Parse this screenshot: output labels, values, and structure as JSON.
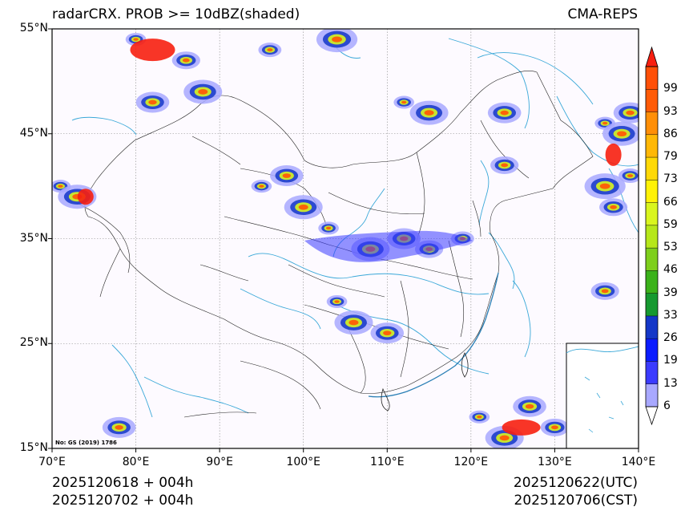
{
  "header": {
    "title_left": "radarCRX. PROB >= 10dBZ(shaded)",
    "title_right": "CMA-REPS"
  },
  "map": {
    "extent": {
      "lon": [
        70,
        140
      ],
      "lat": [
        15,
        55
      ]
    },
    "lat_labels": [
      "55°N",
      "45°N",
      "35°N",
      "25°N",
      "15°N"
    ],
    "lon_labels": [
      "70°E",
      "80°E",
      "90°E",
      "100°E",
      "110°E",
      "120°E",
      "130°E",
      "140°E"
    ],
    "note": "No: GS (2019) 1786",
    "colors": {
      "ocean_tint": "#fdfaff",
      "border": "#222222",
      "river": "#3aa8d8",
      "grid": "#888888"
    }
  },
  "footer": {
    "init_utc": "2025120618  +  004h",
    "init_cst": "2025120702  +  004h",
    "valid_utc": "2025120622(UTC)",
    "valid_cst": "2025120706(CST)"
  },
  "colorbar": {
    "labels": [
      "99",
      "93",
      "86",
      "79",
      "73",
      "66",
      "59",
      "53",
      "46",
      "39",
      "33",
      "26",
      "19",
      "13",
      "6"
    ],
    "colors": [
      "#f71f10",
      "#ff5b06",
      "#ff8f07",
      "#ffb806",
      "#ffd906",
      "#fff206",
      "#d9f51e",
      "#b6e71a",
      "#7ecf1c",
      "#3bb21a",
      "#169930",
      "#1437c8",
      "#0a1cff",
      "#3b3bff",
      "#a8a8ff"
    ]
  }
}
